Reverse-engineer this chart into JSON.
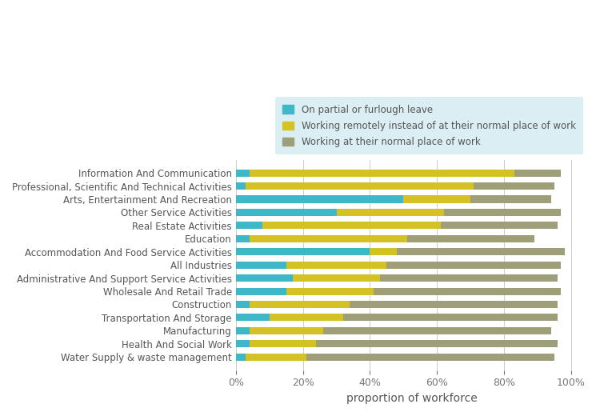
{
  "categories": [
    "Water Supply & waste management",
    "Health And Social Work",
    "Manufacturing",
    "Transportation And Storage",
    "Construction",
    "Wholesale And Retail Trade",
    "Administrative And Support Service Activities",
    "All Industries",
    "Accommodation And Food Service Activities",
    "Education",
    "Real Estate Activities",
    "Other Service Activities",
    "Arts, Entertainment And Recreation",
    "Professional, Scientific And Technical Activities",
    "Information And Communication"
  ],
  "furlough": [
    3,
    4,
    4,
    10,
    4,
    15,
    17,
    15,
    40,
    4,
    8,
    30,
    50,
    3,
    4
  ],
  "remote": [
    18,
    20,
    22,
    22,
    30,
    26,
    26,
    30,
    8,
    47,
    53,
    32,
    20,
    68,
    79
  ],
  "normal": [
    74,
    72,
    68,
    64,
    62,
    56,
    53,
    52,
    50,
    38,
    35,
    35,
    24,
    24,
    14
  ],
  "color_furlough": "#3eb8c8",
  "color_remote": "#d4c224",
  "color_normal": "#9e9e78",
  "legend_labels": [
    "On partial or furlough leave",
    "Working remotely instead of at their normal place of work",
    "Working at their normal place of work"
  ],
  "xlabel": "proportion of workforce",
  "background_color": "#ffffff",
  "legend_bg": "#daeef3",
  "title": ""
}
